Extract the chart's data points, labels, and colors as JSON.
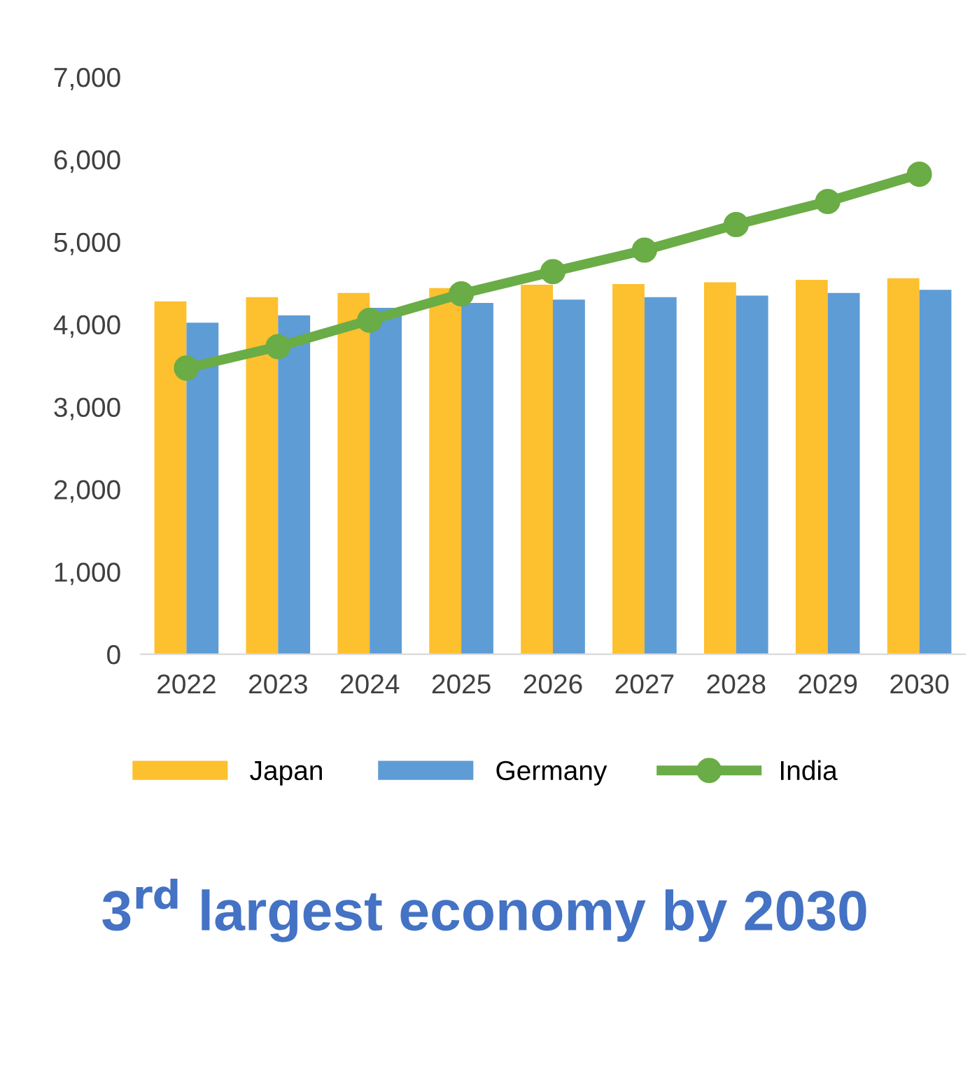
{
  "chart_data": {
    "type": "bar",
    "title": "3$^{rd}$ largest economy by 2030",
    "categories": [
      "2022",
      "2023",
      "2024",
      "2025",
      "2026",
      "2027",
      "2028",
      "2029",
      "2030"
    ],
    "series": [
      {
        "name": "Japan",
        "color": "#fdc02f",
        "values": [
          4280,
          4330,
          4380,
          4440,
          4480,
          4490,
          4510,
          4540,
          4560
        ]
      },
      {
        "name": "Germany",
        "color": "#5e9cd6",
        "values": [
          4020,
          4110,
          4200,
          4260,
          4300,
          4330,
          4350,
          4380,
          4420
        ]
      },
      {
        "name": "India",
        "type": "line",
        "color": "#6aac46",
        "marker": "circle",
        "values": [
          3470,
          3730,
          4050,
          4370,
          4640,
          4900,
          5210,
          5490,
          5820
        ]
      }
    ],
    "ylim": [
      0,
      7000
    ],
    "yticks": [
      0,
      {
        "value": 1000,
        "label": "1,000"
      },
      {
        "value": 2000,
        "label": "2,000"
      },
      {
        "value": 3000,
        "label": "3,000"
      },
      {
        "value": 4000,
        "label": "4,000"
      },
      {
        "value": 5000,
        "label": "5,000"
      },
      {
        "value": 6000,
        "label": "6,000"
      },
      {
        "value": 7000,
        "label": "7,000"
      }
    ],
    "grid": false,
    "legend": "bottom"
  }
}
